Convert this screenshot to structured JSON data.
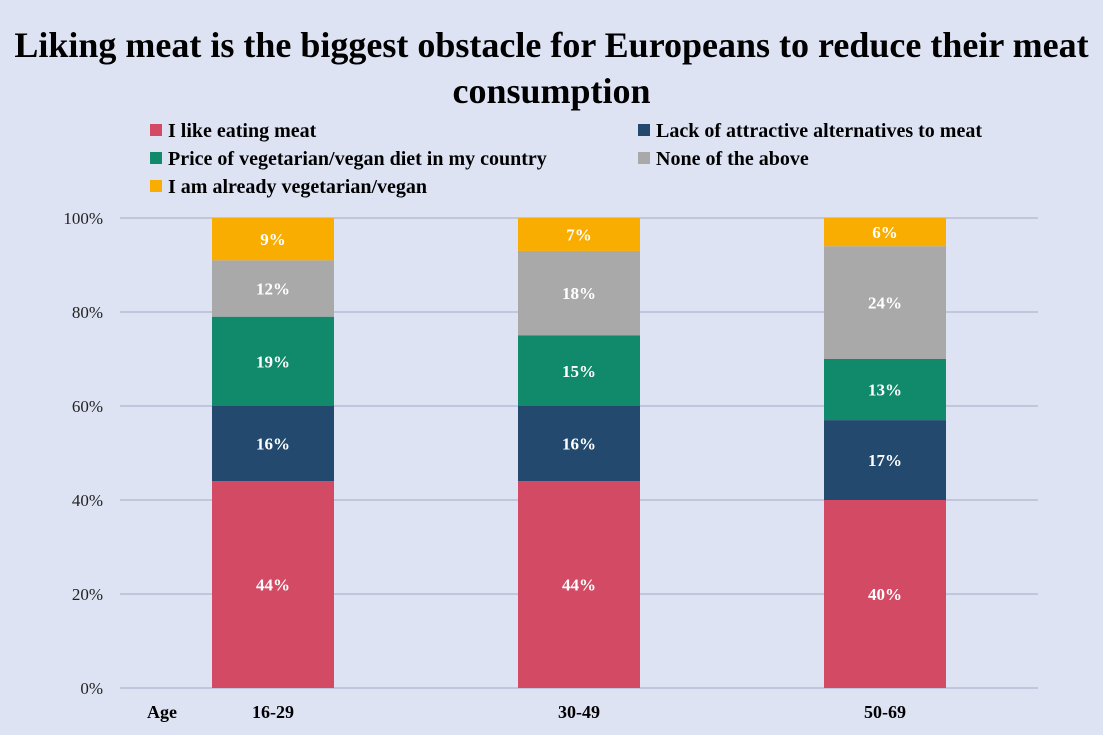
{
  "chart_data": {
    "type": "bar",
    "stacked": true,
    "title": "Liking meat is the biggest obstacle for Europeans to reduce their meat consumption",
    "xlabel": "Age",
    "ylabel": "",
    "categories": [
      "16-29",
      "30-49",
      "50-69"
    ],
    "ylim": [
      0,
      100
    ],
    "yticks": [
      "0%",
      "20%",
      "40%",
      "60%",
      "80%",
      "100%"
    ],
    "ytick_values": [
      0,
      20,
      40,
      60,
      80,
      100
    ],
    "grid": true,
    "legend_position": "top",
    "series": [
      {
        "name": "I like eating meat",
        "color": "#d24a64",
        "values": [
          44,
          44,
          40
        ],
        "labels": [
          "44%",
          "44%",
          "40%"
        ]
      },
      {
        "name": "Lack of attractive alternatives to meat",
        "color": "#234a6e",
        "values": [
          16,
          16,
          17
        ],
        "labels": [
          "16%",
          "16%",
          "17%"
        ]
      },
      {
        "name": "Price of vegetarian/vegan diet in my country",
        "color": "#11896b",
        "values": [
          19,
          15,
          13
        ],
        "labels": [
          "19%",
          "15%",
          "13%"
        ]
      },
      {
        "name": "None of the above",
        "color": "#a9a9a9",
        "values": [
          12,
          18,
          24
        ],
        "labels": [
          "12%",
          "18%",
          "24%"
        ]
      },
      {
        "name": "I am already vegetarian/vegan",
        "color": "#f9ad00",
        "values": [
          9,
          7,
          6
        ],
        "labels": [
          "9%",
          "7%",
          "6%"
        ]
      }
    ]
  }
}
